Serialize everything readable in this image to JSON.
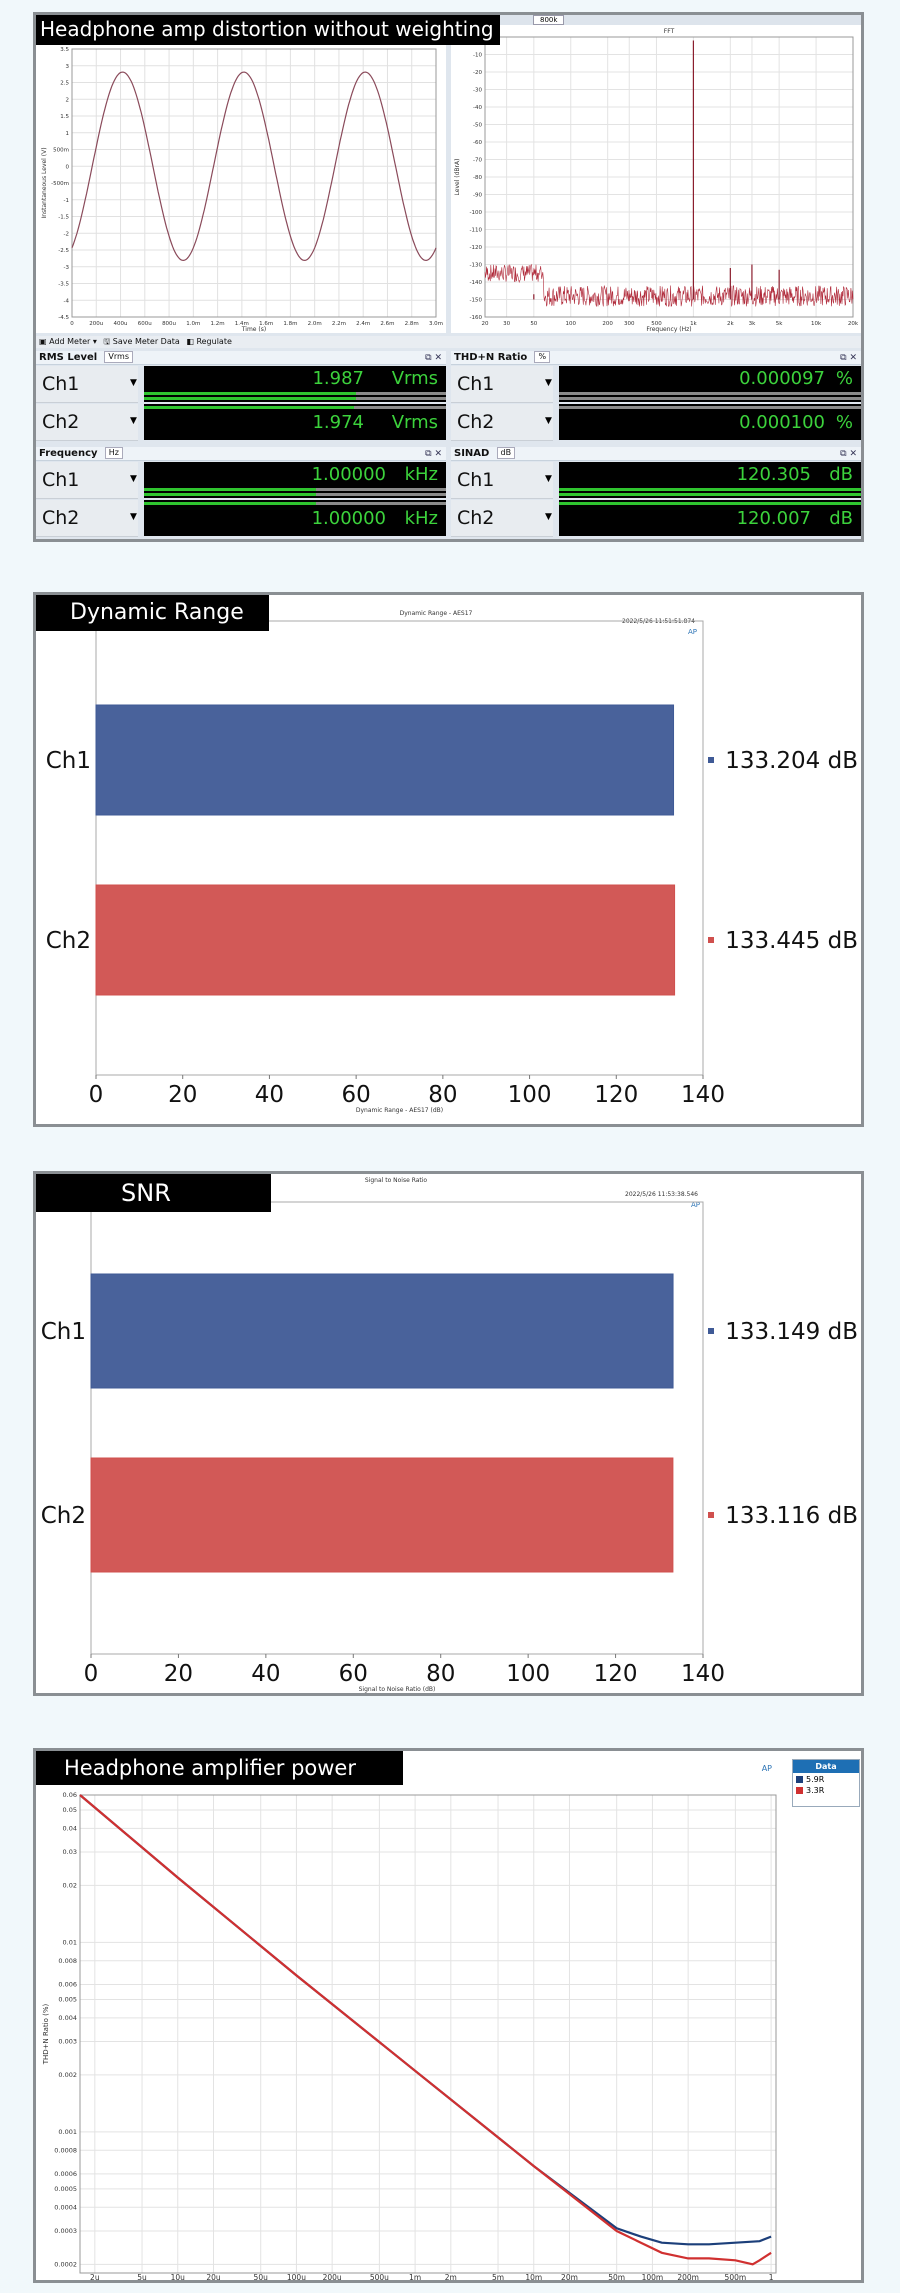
{
  "panel1": {
    "title": "Headphone amp distortion without weighting",
    "waveform": {
      "ylabel": "Instantaneous Level (V)",
      "xlabel": "Time (s)",
      "yticks": [
        "3.5",
        "3",
        "2.5",
        "2",
        "1.5",
        "1",
        "500m",
        "0",
        "-500m",
        "-1",
        "-1.5",
        "-2",
        "-2.5",
        "-3",
        "-3.5",
        "-4",
        "-4.5"
      ],
      "xticks": [
        "0",
        "200u",
        "400u",
        "600u",
        "800u",
        "1.0m",
        "1.2m",
        "1.4m",
        "1.6m",
        "1.8m",
        "2.0m",
        "2.2m",
        "2.4m",
        "2.6m",
        "2.8m",
        "3.0m"
      ]
    },
    "fft": {
      "header_label": "800k",
      "title": "FFT",
      "ylabel": "Level (dBrA)",
      "xlabel": "Frequency (Hz)",
      "yticks": [
        "-10",
        "-20",
        "-30",
        "-40",
        "-50",
        "-60",
        "-70",
        "-80",
        "-90",
        "-100",
        "-110",
        "-120",
        "-130",
        "-140",
        "-150",
        "-160"
      ],
      "xticks": [
        "20",
        "30",
        "50",
        "100",
        "200",
        "300",
        "500",
        "1k",
        "2k",
        "3k",
        "5k",
        "10k",
        "20k"
      ]
    },
    "toolbar": {
      "add_meter": "Add Meter",
      "save_meter_data": "Save Meter Data",
      "regulate": "Regulate"
    },
    "meters": {
      "rms": {
        "name": "RMS Level",
        "unit_select": "Vrms",
        "ch1": {
          "label": "Ch1",
          "value": "1.987",
          "unit": "Vrms"
        },
        "ch2": {
          "label": "Ch2",
          "value": "1.974",
          "unit": "Vrms"
        }
      },
      "thdn": {
        "name": "THD+N Ratio",
        "unit_select": "%",
        "ch1": {
          "label": "Ch1",
          "value": "0.000097",
          "unit": "%"
        },
        "ch2": {
          "label": "Ch2",
          "value": "0.000100",
          "unit": "%"
        }
      },
      "freq": {
        "name": "Frequency",
        "unit_select": "Hz",
        "ch1": {
          "label": "Ch1",
          "value": "1.00000",
          "unit": "kHz"
        },
        "ch2": {
          "label": "Ch2",
          "value": "1.00000",
          "unit": "kHz"
        }
      },
      "sinad": {
        "name": "SINAD",
        "unit_select": "dB",
        "ch1": {
          "label": "Ch1",
          "value": "120.305",
          "unit": "dB"
        },
        "ch2": {
          "label": "Ch2",
          "value": "120.007",
          "unit": "dB"
        }
      }
    }
  },
  "panel2": {
    "title": "Dynamic Range",
    "chart_title": "Dynamic Range - AES17",
    "timestamp": "2022/5/26 11:51:51.874",
    "xlabel": "Dynamic Range - AES17 (dB)"
  },
  "panel3": {
    "title": "SNR",
    "chart_title": "Signal to Noise Ratio",
    "timestamp": "2022/5/26 11:53:38.546",
    "xlabel": "Signal to Noise Ratio (dB)"
  },
  "panel4": {
    "title": "Headphone amplifier power",
    "legend_title": "Data",
    "ylabel": "THD+N Ratio (%)"
  },
  "colors": {
    "ch1": "#3f5a96",
    "ch2": "#d0504e",
    "meter_green": "#3cd23c"
  },
  "chart_data": [
    {
      "type": "line",
      "title": "",
      "xlabel": "Time (s)",
      "ylabel": "Instantaneous Level (V)",
      "xlim": [
        0,
        0.003
      ],
      "ylim": [
        -4.5,
        3.5
      ],
      "series": [
        {
          "values_fn": "sine",
          "amplitude": 2.81,
          "frequency": 1000,
          "phase_deg": -60
        }
      ]
    },
    {
      "type": "line",
      "title": "FFT",
      "xlabel": "Frequency (Hz)",
      "ylabel": "Level (dBrA)",
      "xscale": "log",
      "xlim": [
        20,
        20000
      ],
      "ylim": [
        -160,
        0
      ],
      "series": [
        {
          "peaks": [
            {
              "x": 1000,
              "y": -2
            },
            {
              "x": 2000,
              "y": -132
            },
            {
              "x": 3000,
              "y": -130
            },
            {
              "x": 5000,
              "y": -133
            },
            {
              "x": 50,
              "y": -147
            },
            {
              "x": 150,
              "y": -150
            }
          ],
          "noise_floor": -150
        }
      ]
    },
    {
      "type": "bar",
      "orientation": "horizontal",
      "title": "Dynamic Range - AES17",
      "xlabel": "Dynamic Range - AES17 (dB)",
      "categories": [
        "Ch1",
        "Ch2"
      ],
      "values": [
        133.204,
        133.445
      ],
      "value_labels": [
        "133.204 dB",
        "133.445 dB"
      ],
      "xlim": [
        0,
        140
      ],
      "xticks": [
        "0",
        "20",
        "40",
        "60",
        "80",
        "100",
        "120",
        "140"
      ]
    },
    {
      "type": "bar",
      "orientation": "horizontal",
      "title": "Signal to Noise Ratio",
      "xlabel": "Signal to Noise Ratio (dB)",
      "categories": [
        "Ch1",
        "Ch2"
      ],
      "values": [
        133.149,
        133.116
      ],
      "value_labels": [
        "133.149 dB",
        "133.116 dB"
      ],
      "xlim": [
        0,
        140
      ],
      "xticks": [
        "0",
        "20",
        "40",
        "60",
        "80",
        "100",
        "120",
        "140"
      ]
    },
    {
      "type": "line",
      "title": "",
      "xlabel": "",
      "ylabel": "THD+N Ratio (%)",
      "xscale": "log",
      "yscale": "log",
      "xlim": [
        1.5e-06,
        1.1
      ],
      "ylim": [
        0.00018,
        0.06
      ],
      "xticks": [
        "2u",
        "5u",
        "10u",
        "20u",
        "50u",
        "100u",
        "200u",
        "500u",
        "1m",
        "2m",
        "5m",
        "10m",
        "20m",
        "50m",
        "100m",
        "200m",
        "500m",
        "1"
      ],
      "xtick_values": [
        2e-06,
        5e-06,
        1e-05,
        2e-05,
        5e-05,
        0.0001,
        0.0002,
        0.0005,
        0.001,
        0.002,
        0.005,
        0.01,
        0.02,
        0.05,
        0.1,
        0.2,
        0.5,
        1
      ],
      "yticks": [
        "0.06",
        "0.05",
        "0.04",
        "0.03",
        "0.02",
        "0.01",
        "0.008",
        "0.006",
        "0.005",
        "0.004",
        "0.003",
        "0.002",
        "0.001",
        "0.0008",
        "0.0006",
        "0.0005",
        "0.0004",
        "0.0003",
        "0.0002"
      ],
      "ytick_values": [
        0.06,
        0.05,
        0.04,
        0.03,
        0.02,
        0.01,
        0.008,
        0.006,
        0.005,
        0.004,
        0.003,
        0.002,
        0.001,
        0.0008,
        0.0006,
        0.0005,
        0.0004,
        0.0003,
        0.0002
      ],
      "series": [
        {
          "name": "5.9R",
          "color": "#1c3f7a",
          "x": [
            1.5e-06,
            1e-05,
            0.0001,
            0.001,
            0.01,
            0.05,
            0.08,
            0.12,
            0.2,
            0.3,
            0.5,
            0.8,
            1.0
          ],
          "y": [
            0.06,
            0.022,
            0.0067,
            0.0021,
            0.00066,
            0.00031,
            0.00028,
            0.00026,
            0.000255,
            0.000255,
            0.00026,
            0.000265,
            0.00028
          ]
        },
        {
          "name": "3.3R",
          "color": "#d03030",
          "x": [
            1.5e-06,
            1e-05,
            0.0001,
            0.001,
            0.01,
            0.05,
            0.08,
            0.12,
            0.2,
            0.3,
            0.5,
            0.7,
            0.8,
            1.0
          ],
          "y": [
            0.06,
            0.022,
            0.0067,
            0.0021,
            0.00066,
            0.0003,
            0.00026,
            0.00023,
            0.000215,
            0.000215,
            0.00021,
            0.0002,
            0.00021,
            0.00023
          ]
        }
      ]
    }
  ]
}
